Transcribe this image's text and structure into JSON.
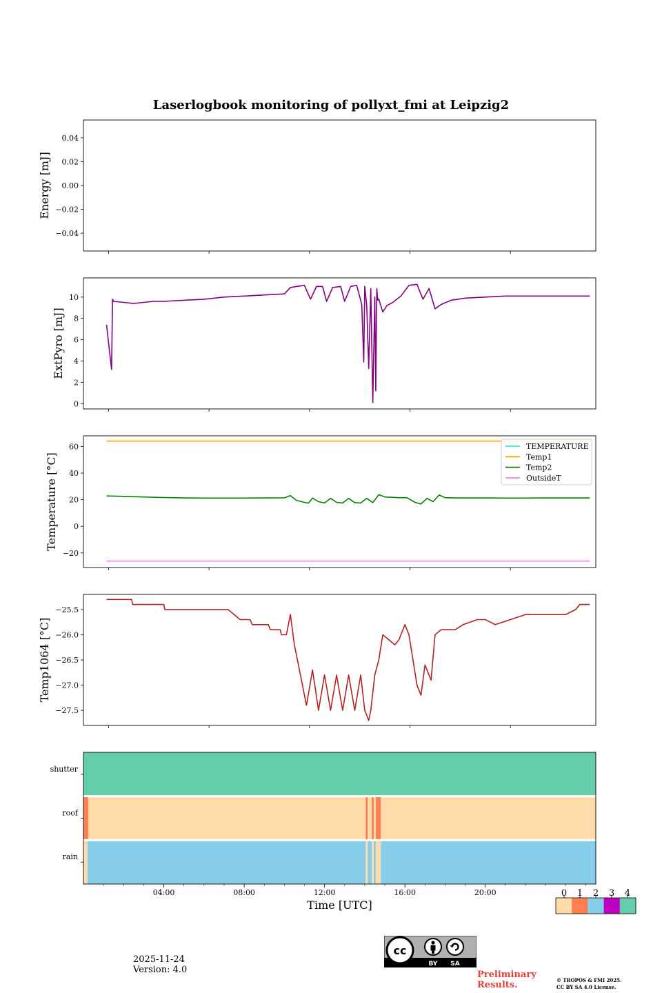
{
  "figure": {
    "title": "Laserlogbook monitoring of pollyxt_fmi at Leipzig2",
    "date": "2025-11-24",
    "version": "Version: 4.0",
    "preliminary_line1": "Preliminary",
    "preliminary_line2": "Results.",
    "copyright_line1": "© TROPOS & FMI 2025.",
    "copyright_line2": "CC BY SA 4.0 License.",
    "license_badge": {
      "icon": "cc-by-sa-icon",
      "labels": [
        "BY",
        "SA"
      ]
    }
  },
  "colors": {
    "energy": "#800080",
    "extpyro": "#800080",
    "TEMPERATURE": "#40e0d0",
    "Temp1": "#ffa500",
    "Temp2": "#008000",
    "OutsideT": "#ee82ee",
    "temp1064": "#b22222",
    "flag_0": "#fddcaa",
    "flag_1": "#ff7f50",
    "flag_2": "#87ceeb",
    "flag_3": "#c000c0",
    "flag_4": "#66cdaa",
    "red_text": "#e8403a"
  },
  "chart_data": [
    {
      "id": "energy",
      "type": "line",
      "title": "",
      "xlabel": "",
      "ylabel": "Energy [mJ]",
      "xlim": [
        0,
        25.5
      ],
      "ylim": [
        -0.055,
        0.055
      ],
      "yticks": [
        -0.04,
        -0.02,
        0.0,
        0.02,
        0.04
      ],
      "ytick_labels": [
        "−0.04",
        "−0.02",
        "0.00",
        "0.02",
        "0.04"
      ],
      "series": []
    },
    {
      "id": "extpyro",
      "type": "line",
      "title": "",
      "xlabel": "",
      "ylabel": "ExtPyro [mJ]",
      "xlim": [
        0,
        25.5
      ],
      "ylim": [
        -0.5,
        11.8
      ],
      "yticks": [
        0,
        2,
        4,
        6,
        8,
        10
      ],
      "ytick_labels": [
        "0",
        "2",
        "4",
        "6",
        "8",
        "10"
      ],
      "series": [
        {
          "name": "ExtPyro",
          "x": [
            1.15,
            1.4,
            1.45,
            1.5,
            2.0,
            2.5,
            3.0,
            3.5,
            4.0,
            5.0,
            6.0,
            7.0,
            8.0,
            9.0,
            10.0,
            10.3,
            10.6,
            11.0,
            11.3,
            11.6,
            11.9,
            12.1,
            12.4,
            12.8,
            13.0,
            13.3,
            13.6,
            13.85,
            13.95,
            14.0,
            14.1,
            14.2,
            14.3,
            14.4,
            14.5,
            14.55,
            14.6,
            14.65,
            14.7,
            14.9,
            15.1,
            15.4,
            15.8,
            16.2,
            16.6,
            16.9,
            17.2,
            17.5,
            17.8,
            18.3,
            19.0,
            20.0,
            21.0,
            22.0,
            23.0,
            24.0,
            25.2
          ],
          "y": [
            7.4,
            3.2,
            9.8,
            9.6,
            9.5,
            9.4,
            9.5,
            9.6,
            9.6,
            9.7,
            9.8,
            10.0,
            10.1,
            10.2,
            10.3,
            10.9,
            11.0,
            11.1,
            9.8,
            11.0,
            11.0,
            9.6,
            10.9,
            11.0,
            9.6,
            11.0,
            11.1,
            9.3,
            3.9,
            11.0,
            9.2,
            3.3,
            10.8,
            0.1,
            10.0,
            1.2,
            10.8,
            9.7,
            9.8,
            8.6,
            9.2,
            9.5,
            10.1,
            11.1,
            11.2,
            9.8,
            10.8,
            8.9,
            9.3,
            9.7,
            9.9,
            10.0,
            10.1,
            10.1,
            10.1,
            10.1,
            10.1
          ]
        }
      ]
    },
    {
      "id": "temperature",
      "type": "line",
      "title": "",
      "xlabel": "",
      "ylabel": "Temperature [°C]",
      "xlim": [
        0,
        25.5
      ],
      "ylim": [
        -31,
        68
      ],
      "yticks": [
        -20,
        0,
        20,
        40,
        60
      ],
      "ytick_labels": [
        "−20",
        "0",
        "20",
        "40",
        "60"
      ],
      "legend": {
        "position": "top-right",
        "entries": [
          "TEMPERATURE",
          "Temp1",
          "Temp2",
          "OutsideT"
        ]
      },
      "series": [
        {
          "name": "TEMPERATURE",
          "x": [],
          "y": []
        },
        {
          "name": "Temp1",
          "x": [
            1.15,
            25.2
          ],
          "y": [
            64.0,
            64.0
          ]
        },
        {
          "name": "Temp2",
          "x": [
            1.15,
            2.0,
            3.0,
            4.0,
            5.0,
            6.0,
            7.0,
            8.0,
            9.0,
            10.0,
            10.3,
            10.6,
            11.0,
            11.2,
            11.4,
            11.7,
            12.0,
            12.3,
            12.6,
            12.9,
            13.2,
            13.5,
            13.8,
            14.1,
            14.4,
            14.7,
            15.0,
            15.3,
            15.7,
            16.1,
            16.5,
            16.8,
            17.1,
            17.4,
            17.7,
            18.0,
            18.5,
            19.0,
            20.0,
            21.0,
            22.0,
            23.0,
            24.0,
            25.2
          ],
          "y": [
            22.8,
            22.5,
            22.0,
            21.6,
            21.3,
            21.2,
            21.2,
            21.2,
            21.3,
            21.4,
            23.0,
            19.5,
            18.0,
            17.4,
            21.2,
            18.5,
            17.5,
            21.0,
            18.0,
            17.5,
            21.0,
            17.8,
            17.5,
            21.0,
            17.8,
            23.8,
            22.0,
            21.8,
            21.5,
            21.5,
            18.0,
            16.8,
            21.0,
            18.5,
            23.5,
            21.5,
            21.3,
            21.3,
            21.3,
            21.2,
            21.2,
            21.3,
            21.3,
            21.3
          ]
        },
        {
          "name": "OutsideT",
          "x": [
            1.15,
            25.2
          ],
          "y": [
            -26.2,
            -26.2
          ]
        }
      ]
    },
    {
      "id": "temp1064",
      "type": "line",
      "title": "",
      "xlabel": "",
      "ylabel": "Temp1064 [°C]",
      "xlim": [
        0,
        25.5
      ],
      "ylim": [
        -27.8,
        -25.2
      ],
      "yticks": [
        -27.5,
        -27.0,
        -26.5,
        -26.0,
        -25.5
      ],
      "ytick_labels": [
        "−27.5",
        "−27.0",
        "−26.5",
        "−26.0",
        "−25.5"
      ],
      "series": [
        {
          "name": "Temp1064",
          "x": [
            1.15,
            2.4,
            2.45,
            4.0,
            4.05,
            7.2,
            7.5,
            7.8,
            8.3,
            8.4,
            9.2,
            9.3,
            9.8,
            9.85,
            10.1,
            10.3,
            10.5,
            10.8,
            11.1,
            11.4,
            11.7,
            12.0,
            12.3,
            12.6,
            12.9,
            13.2,
            13.5,
            13.8,
            14.0,
            14.2,
            14.3,
            14.5,
            14.7,
            14.9,
            15.2,
            15.5,
            15.7,
            16.0,
            16.2,
            16.4,
            16.6,
            16.8,
            17.0,
            17.3,
            17.5,
            17.8,
            18.5,
            18.9,
            19.6,
            20.0,
            20.5,
            22.0,
            23.0,
            24.0,
            24.5,
            24.7,
            25.2
          ],
          "y": [
            -25.3,
            -25.3,
            -25.4,
            -25.4,
            -25.5,
            -25.5,
            -25.6,
            -25.7,
            -25.7,
            -25.8,
            -25.8,
            -25.9,
            -25.9,
            -26.0,
            -26.0,
            -25.6,
            -26.2,
            -26.8,
            -27.4,
            -26.7,
            -27.5,
            -26.8,
            -27.5,
            -26.8,
            -27.5,
            -26.8,
            -27.5,
            -26.8,
            -27.5,
            -27.7,
            -27.5,
            -26.8,
            -26.5,
            -26.0,
            -26.1,
            -26.2,
            -26.1,
            -25.8,
            -26.0,
            -26.5,
            -27.0,
            -27.2,
            -26.6,
            -26.9,
            -26.0,
            -25.9,
            -25.9,
            -25.8,
            -25.7,
            -25.7,
            -25.8,
            -25.6,
            -25.6,
            -25.6,
            -25.5,
            -25.4,
            -25.4
          ]
        }
      ]
    },
    {
      "id": "flags",
      "type": "heatmap",
      "title": "",
      "xlabel": "Time [UTC]",
      "ylabel": "",
      "xlim": [
        0,
        25.5
      ],
      "xticks": [
        4,
        8,
        12,
        16,
        20
      ],
      "xtick_labels": [
        "04:00",
        "08:00",
        "12:00",
        "16:00",
        "20:00"
      ],
      "rows": [
        {
          "label": "shutter",
          "segments": [
            {
              "start": 0,
              "end": 25.5,
              "value": 4
            }
          ]
        },
        {
          "label": "roof",
          "segments": [
            {
              "start": 0,
              "end": 0.25,
              "value": 1
            },
            {
              "start": 0.25,
              "end": 14.05,
              "value": 0
            },
            {
              "start": 14.05,
              "end": 14.15,
              "value": 1
            },
            {
              "start": 14.15,
              "end": 14.35,
              "value": 0
            },
            {
              "start": 14.35,
              "end": 14.45,
              "value": 1
            },
            {
              "start": 14.45,
              "end": 14.55,
              "value": 0
            },
            {
              "start": 14.55,
              "end": 14.8,
              "value": 1
            },
            {
              "start": 14.8,
              "end": 25.5,
              "value": 0
            }
          ]
        },
        {
          "label": "rain",
          "segments": [
            {
              "start": 0,
              "end": 0.2,
              "value": 0
            },
            {
              "start": 0.2,
              "end": 14.05,
              "value": 2
            },
            {
              "start": 14.05,
              "end": 14.15,
              "value": 0
            },
            {
              "start": 14.15,
              "end": 14.35,
              "value": 2
            },
            {
              "start": 14.35,
              "end": 14.45,
              "value": 0
            },
            {
              "start": 14.45,
              "end": 14.55,
              "value": 2
            },
            {
              "start": 14.55,
              "end": 14.8,
              "value": 0
            },
            {
              "start": 14.8,
              "end": 25.5,
              "value": 2
            }
          ]
        }
      ],
      "colorbar": {
        "ticks": [
          0,
          1,
          2,
          3,
          4
        ],
        "tick_labels": [
          "0",
          "1",
          "2",
          "3",
          "4"
        ]
      }
    }
  ]
}
